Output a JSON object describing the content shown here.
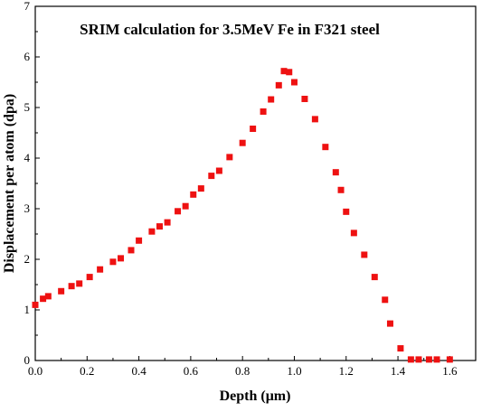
{
  "chart_data": {
    "type": "scatter",
    "title": "SRIM calculation for 3.5MeV Fe in F321 steel",
    "xlabel": "Depth (μm)",
    "ylabel": "Displacement per atom (dpa)",
    "xlim": [
      0.0,
      1.7
    ],
    "ylim": [
      0,
      7
    ],
    "xticks": [
      "0.0",
      "0.2",
      "0.4",
      "0.6",
      "0.8",
      "1.0",
      "1.2",
      "1.4",
      "1.6"
    ],
    "yticks": [
      "0",
      "1",
      "2",
      "3",
      "4",
      "5",
      "6",
      "7"
    ],
    "legend": "none",
    "grid": false,
    "marker": "square",
    "color": "#ee1111",
    "points": [
      [
        0.0,
        1.1
      ],
      [
        0.03,
        1.22
      ],
      [
        0.05,
        1.27
      ],
      [
        0.1,
        1.37
      ],
      [
        0.14,
        1.47
      ],
      [
        0.17,
        1.52
      ],
      [
        0.21,
        1.65
      ],
      [
        0.25,
        1.8
      ],
      [
        0.3,
        1.95
      ],
      [
        0.33,
        2.02
      ],
      [
        0.37,
        2.18
      ],
      [
        0.4,
        2.37
      ],
      [
        0.45,
        2.55
      ],
      [
        0.48,
        2.65
      ],
      [
        0.51,
        2.73
      ],
      [
        0.55,
        2.95
      ],
      [
        0.58,
        3.05
      ],
      [
        0.61,
        3.28
      ],
      [
        0.64,
        3.4
      ],
      [
        0.68,
        3.65
      ],
      [
        0.71,
        3.75
      ],
      [
        0.75,
        4.02
      ],
      [
        0.8,
        4.3
      ],
      [
        0.84,
        4.58
      ],
      [
        0.88,
        4.92
      ],
      [
        0.91,
        5.16
      ],
      [
        0.94,
        5.44
      ],
      [
        0.96,
        5.72
      ],
      [
        0.98,
        5.7
      ],
      [
        1.0,
        5.5
      ],
      [
        1.04,
        5.17
      ],
      [
        1.08,
        4.77
      ],
      [
        1.12,
        4.22
      ],
      [
        1.16,
        3.72
      ],
      [
        1.18,
        3.37
      ],
      [
        1.2,
        2.94
      ],
      [
        1.23,
        2.52
      ],
      [
        1.27,
        2.09
      ],
      [
        1.31,
        1.65
      ],
      [
        1.35,
        1.2
      ],
      [
        1.37,
        0.73
      ],
      [
        1.41,
        0.24
      ],
      [
        1.45,
        0.02
      ],
      [
        1.48,
        0.02
      ],
      [
        1.52,
        0.02
      ],
      [
        1.55,
        0.02
      ],
      [
        1.6,
        0.02
      ]
    ]
  }
}
